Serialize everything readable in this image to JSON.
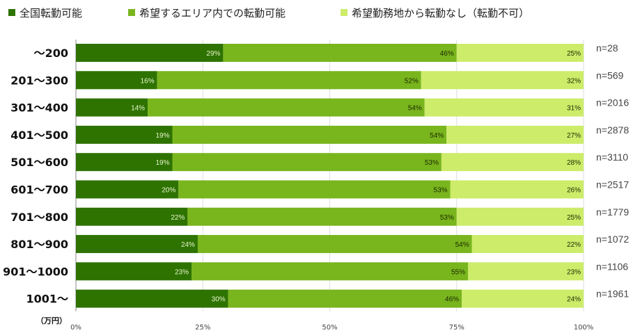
{
  "chart_data": {
    "type": "bar",
    "orientation": "horizontal",
    "stacked": true,
    "title": "",
    "ylabel_unit": "（万円）",
    "categories": [
      "～200",
      "201～300",
      "301～400",
      "401～500",
      "501～600",
      "601～700",
      "701～800",
      "801～900",
      "901～1000",
      "1001～"
    ],
    "sample_sizes": [
      "n=28",
      "n=569",
      "n=2016",
      "n=2878",
      "n=3110",
      "n=2517",
      "n=1779",
      "n=1072",
      "n=1106",
      "n=1961"
    ],
    "series": [
      {
        "name": "全国転勤可能",
        "color": "#2e7300",
        "label_color": "#e8f5d0",
        "values": [
          29,
          16,
          14,
          19,
          19,
          20,
          22,
          24,
          23,
          30
        ]
      },
      {
        "name": "希望するエリア内での転勤可能",
        "color": "#79b51d",
        "label_color": "#1a2a00",
        "values": [
          46,
          52,
          54,
          54,
          53,
          53,
          53,
          54,
          55,
          46
        ]
      },
      {
        "name": "希望勤務地から転勤なし（転勤不可）",
        "color": "#ccec6a",
        "label_color": "#1a2a00",
        "values": [
          25,
          32,
          31,
          27,
          28,
          26,
          25,
          22,
          23,
          24
        ]
      }
    ],
    "xlim": [
      0,
      100
    ],
    "xticks": [
      "0%",
      "25%",
      "50%",
      "75%",
      "100%"
    ],
    "grid": true,
    "legend_position": "top-left"
  }
}
